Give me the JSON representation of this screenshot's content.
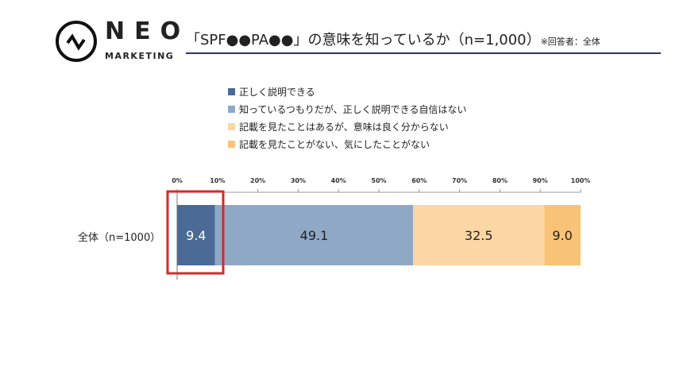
{
  "logo": {
    "name": "NEO",
    "sub": "MARKETING"
  },
  "header": {
    "title": "「SPF●●PA●●」の意味を知っているか（n=1,000）",
    "note": "※回答者：全体"
  },
  "chart_data": {
    "type": "bar",
    "orientation": "horizontal",
    "stacked": true,
    "categories": [
      "全体（n=1000）"
    ],
    "xlim": [
      0,
      100
    ],
    "xticks": [
      "0%",
      "10%",
      "20%",
      "30%",
      "40%",
      "50%",
      "60%",
      "70%",
      "80%",
      "90%",
      "100%"
    ],
    "legend_position": "top",
    "series": [
      {
        "name": "正しく説明できる",
        "values": [
          9.4
        ],
        "color": "#4b6a95"
      },
      {
        "name": "知っているつもりだが、正しく説明できる自信はない",
        "values": [
          49.1
        ],
        "color": "#8fa8c6"
      },
      {
        "name": "記載を見たことはあるが、意味は良く分からない",
        "values": [
          32.5
        ],
        "color": "#fbd7a5"
      },
      {
        "name": "記載を見たことがない、気にしたことがない",
        "values": [
          9.0
        ],
        "color": "#f8c377"
      }
    ],
    "highlight": {
      "series": "正しく説明できる",
      "color": "#d42a2a"
    }
  }
}
